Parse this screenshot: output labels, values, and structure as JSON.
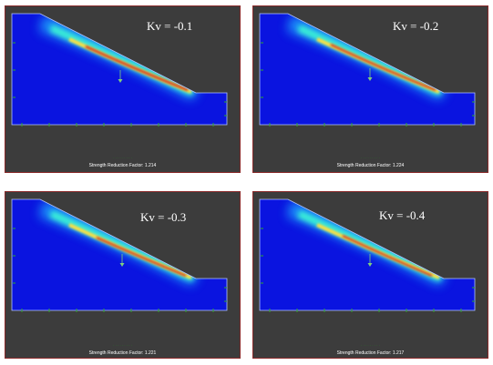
{
  "panels": [
    {
      "kv_label": "Kv = -0.1",
      "srf_label": "Strength Reduction Factor: 1.214"
    },
    {
      "kv_label": "Kv = -0.2",
      "srf_label": "Strength Reduction Factor: 1.224"
    },
    {
      "kv_label": "Kv = -0.3",
      "srf_label": "Strength Reduction Factor: 1.221"
    },
    {
      "kv_label": "Kv = -0.4",
      "srf_label": "Strength Reduction Factor: 1.217"
    }
  ],
  "colors": {
    "background": "#3c3c3c",
    "frame": "#8a2a2a",
    "model": "#0a14e0",
    "band_hot": "#cc1a1a",
    "band_warm": "#ffd700",
    "band_cool": "#00d8ff",
    "support": "#2ea82e"
  }
}
